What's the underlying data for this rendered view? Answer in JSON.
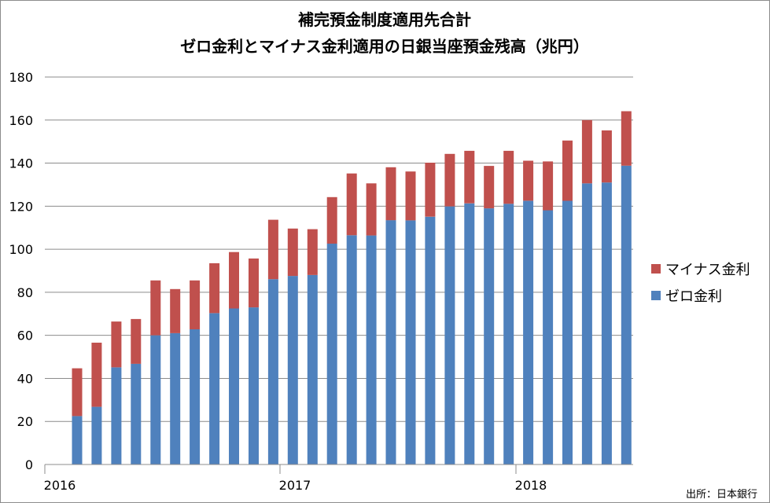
{
  "chart_data": {
    "type": "bar",
    "stacked": true,
    "title": "補完預金制度適用先合計",
    "subtitle": "ゼロ金利とマイナス金利適用の日銀当座預金残高（兆円）",
    "x_tick_labels": [
      "2016",
      "2017",
      "2018"
    ],
    "ylim": [
      0,
      180
    ],
    "y_ticks": [
      0,
      20,
      40,
      60,
      80,
      100,
      120,
      140,
      160,
      180
    ],
    "grid": true,
    "legend_position": "right",
    "series": [
      {
        "name": "ゼロ金利",
        "color": "#4f81bd",
        "values": [
          22.5,
          26.8,
          45.1,
          46.8,
          60.0,
          61.0,
          62.8,
          70.3,
          72.5,
          73.0,
          86.1,
          87.6,
          88.0,
          102.6,
          106.5,
          106.4,
          113.5,
          113.4,
          115.1,
          119.9,
          121.3,
          119.0,
          121.1,
          122.5,
          118.1,
          122.5,
          130.6,
          131.0,
          138.8
        ]
      },
      {
        "name": "マイナス金利",
        "color": "#c0504d",
        "values": [
          22.2,
          29.8,
          21.3,
          20.8,
          25.5,
          20.5,
          22.7,
          23.2,
          26.2,
          22.7,
          27.6,
          22.0,
          21.3,
          21.6,
          28.7,
          24.2,
          24.6,
          22.7,
          25.1,
          24.4,
          24.4,
          19.7,
          24.6,
          18.6,
          22.7,
          28.0,
          29.4,
          24.2,
          25.3
        ]
      }
    ],
    "source": "出所：日本銀行"
  }
}
